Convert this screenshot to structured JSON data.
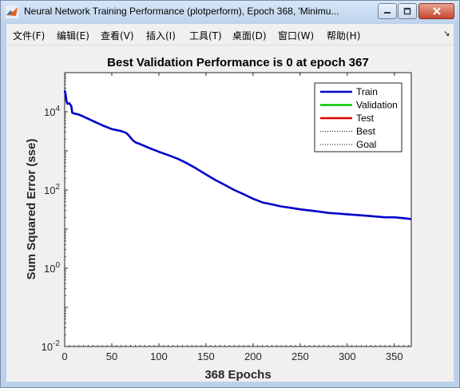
{
  "window": {
    "title": "Neural Network Training Performance (plotperform), Epoch 368, 'Minimu..."
  },
  "menu": {
    "items": [
      {
        "label": "文件(F)"
      },
      {
        "label": "编辑(E)"
      },
      {
        "label": "查看(V)"
      },
      {
        "label": "插入(I)"
      },
      {
        "label": "工具(T)"
      },
      {
        "label": "桌面(D)"
      },
      {
        "label": "窗口(W)"
      },
      {
        "label": "帮助(H)"
      }
    ],
    "collapse_glyph": "↘"
  },
  "chart_data": {
    "type": "line",
    "title": "Best Validation Performance is 0 at epoch 367",
    "xlabel": "368 Epochs",
    "ylabel": "Sum Squared Error  (sse)",
    "xlim": [
      0,
      368
    ],
    "ylim": [
      0.01,
      100000
    ],
    "yscale": "log",
    "x_ticks": [
      0,
      50,
      100,
      150,
      200,
      250,
      300,
      350
    ],
    "y_ticks": [
      {
        "value": 0.01,
        "base": "10",
        "exp": "-2"
      },
      {
        "value": 1,
        "base": "10",
        "exp": "0"
      },
      {
        "value": 100,
        "base": "10",
        "exp": "2"
      },
      {
        "value": 10000,
        "base": "10",
        "exp": "4"
      }
    ],
    "grid": false,
    "legend_position": "top-right",
    "legend": [
      {
        "label": "Train",
        "style": "solid",
        "color": "#0000c8"
      },
      {
        "label": "Validation",
        "style": "solid",
        "color": "#00c800"
      },
      {
        "label": "Test",
        "style": "solid",
        "color": "#e00000"
      },
      {
        "label": "Best",
        "style": "dotted",
        "color": "#000000"
      },
      {
        "label": "Goal",
        "style": "dotted",
        "color": "#000000"
      }
    ],
    "series": [
      {
        "name": "Train",
        "color": "#0000c8",
        "x": [
          0,
          1,
          2,
          3,
          5,
          7,
          8,
          10,
          15,
          20,
          30,
          40,
          50,
          60,
          65,
          68,
          72,
          75,
          80,
          90,
          100,
          110,
          120,
          130,
          140,
          150,
          160,
          170,
          180,
          190,
          200,
          210,
          220,
          230,
          240,
          250,
          260,
          270,
          280,
          290,
          300,
          310,
          320,
          330,
          340,
          350,
          360,
          368
        ],
        "y": [
          35000,
          28000,
          18000,
          16000,
          16500,
          14000,
          9500,
          9000,
          8500,
          7500,
          5800,
          4500,
          3600,
          3200,
          2900,
          2500,
          1900,
          1650,
          1500,
          1180,
          950,
          780,
          630,
          480,
          350,
          250,
          180,
          135,
          100,
          78,
          60,
          48,
          43,
          38,
          35,
          32,
          30,
          28,
          26,
          25,
          24,
          23,
          22,
          21,
          20,
          20,
          19,
          18
        ]
      }
    ]
  }
}
